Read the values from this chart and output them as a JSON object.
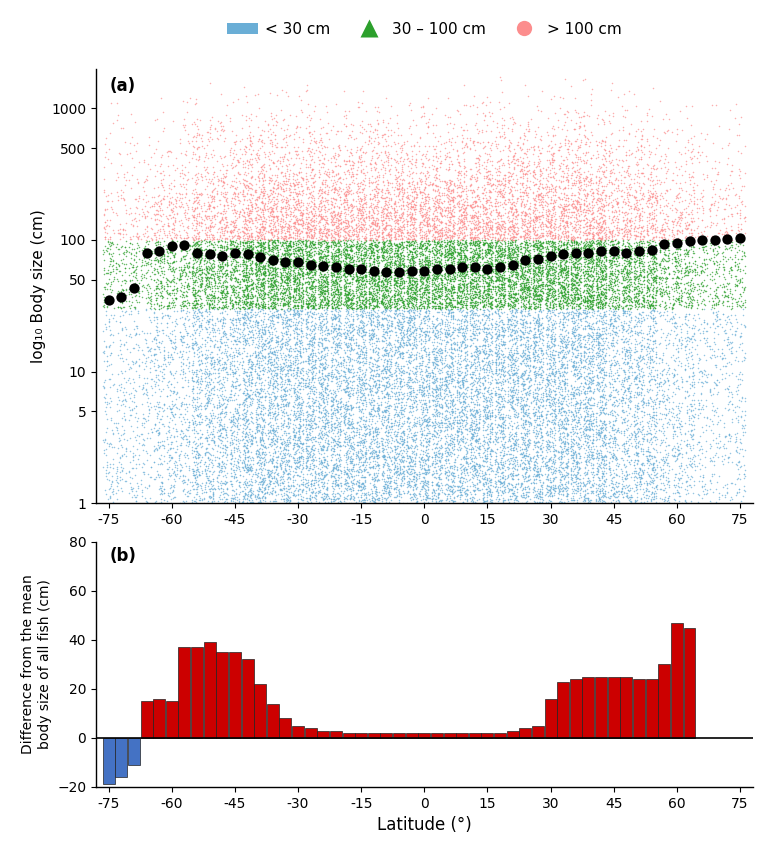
{
  "title_a": "(a)",
  "title_b": "(b)",
  "xlabel": "Latitude (°)",
  "ylabel_a": "log₁₀ Body size (cm)",
  "ylabel_b": "Difference from the mean\nbody size of all fish (cm)",
  "lat_ticks": [
    -75,
    -60,
    -45,
    -30,
    -15,
    0,
    15,
    30,
    45,
    60,
    75
  ],
  "legend_labels": [
    "< 30 cm",
    "30 – 100 cm",
    "> 100 cm"
  ],
  "legend_colors": [
    "#6aaed6",
    "#2ca02c",
    "#fc8d8d"
  ],
  "dot_color": "#000000",
  "blue_color": "#6aaed6",
  "green_color": "#2ca02c",
  "red_color": "#fc8d8d",
  "bar_pos_color": "#cc0000",
  "bar_neg_color": "#4472c4",
  "ylim_a_log": [
    1,
    2000
  ],
  "yticks_a": [
    1,
    5,
    10,
    50,
    100,
    500,
    1000
  ],
  "ylim_b": [
    -20,
    80
  ],
  "yticks_b": [
    -20,
    0,
    20,
    40,
    60,
    80
  ],
  "latitudes": [
    -75,
    -72,
    -69,
    -66,
    -63,
    -60,
    -57,
    -54,
    -51,
    -48,
    -45,
    -42,
    -39,
    -36,
    -33,
    -30,
    -27,
    -24,
    -21,
    -18,
    -15,
    -12,
    -9,
    -6,
    -3,
    0,
    3,
    6,
    9,
    12,
    15,
    18,
    21,
    24,
    27,
    30,
    33,
    36,
    39,
    42,
    45,
    48,
    51,
    54,
    57,
    60,
    63,
    66,
    69,
    72,
    75
  ],
  "mean_values": [
    35,
    37,
    43,
    80,
    82,
    90,
    92,
    80,
    78,
    76,
    80,
    78,
    74,
    70,
    68,
    68,
    65,
    63,
    62,
    60,
    60,
    58,
    57,
    57,
    58,
    58,
    60,
    60,
    62,
    62,
    60,
    62,
    65,
    70,
    72,
    75,
    78,
    80,
    80,
    82,
    82,
    80,
    82,
    84,
    94,
    95,
    98,
    100,
    100,
    102,
    104
  ],
  "bar_values": [
    -19,
    -16,
    -11,
    15,
    16,
    15,
    37,
    37,
    39,
    35,
    35,
    32,
    22,
    14,
    8,
    5,
    4,
    3,
    3,
    2,
    2,
    2,
    2,
    2,
    2,
    2,
    2,
    2,
    2,
    2,
    2,
    2,
    3,
    4,
    5,
    16,
    23,
    24,
    25,
    25,
    25,
    25,
    24,
    24,
    30,
    47,
    45,
    0,
    0,
    0,
    0
  ]
}
